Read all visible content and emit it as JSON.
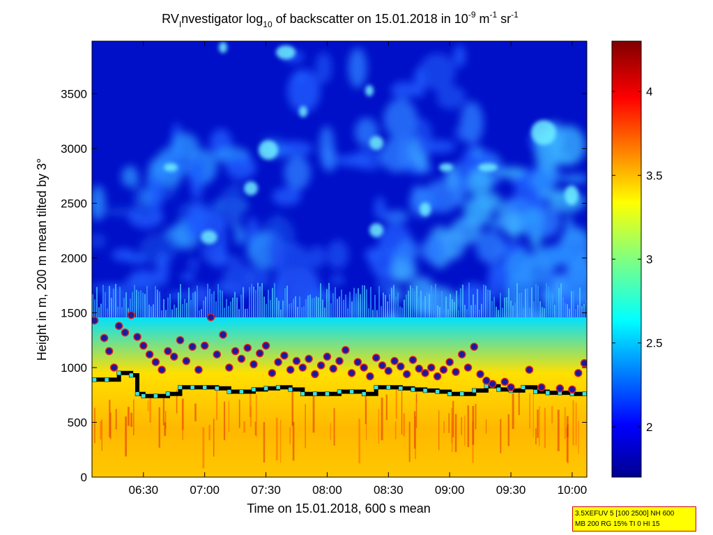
{
  "chart_data": {
    "type": "heatmap",
    "title": {
      "pre": "RV",
      "sub1": "I",
      "mid": "nvestigator log",
      "sub2": "10",
      "mid2": " of backscatter on 15.01.2018 in 10",
      "sup1": "-9",
      "mid3": " m",
      "sup2": "-1",
      "mid4": " sr",
      "sup3": "-1"
    },
    "xlabel": "Time on 15.01.2018, 600 s mean",
    "ylabel": "Height in m, 200 m mean tilted by 3°",
    "x_ticks": [
      "06:30",
      "07:00",
      "07:30",
      "08:00",
      "08:30",
      "09:00",
      "09:30",
      "10:00"
    ],
    "x_tick_hours": [
      6.5,
      7.0,
      7.5,
      8.0,
      8.5,
      9.0,
      9.5,
      10.0
    ],
    "xlim_hours": [
      6.08,
      10.12
    ],
    "y_ticks": [
      "0",
      "500",
      "1000",
      "1500",
      "2000",
      "2500",
      "3000",
      "3500"
    ],
    "y_tick_values": [
      0,
      500,
      1000,
      1500,
      2000,
      2500,
      3000,
      3500
    ],
    "ylim": [
      0,
      3980
    ],
    "colorbar": {
      "ticks": [
        "2",
        "2.5",
        "3",
        "3.5",
        "4"
      ],
      "tick_values": [
        2,
        2.5,
        3,
        3.5,
        4
      ],
      "range": [
        1.7,
        4.3
      ],
      "colormap": "jet"
    },
    "mixing_layer_height": [
      [
        6.1,
        890
      ],
      [
        6.2,
        890
      ],
      [
        6.3,
        950
      ],
      [
        6.4,
        930
      ],
      [
        6.45,
        760
      ],
      [
        6.5,
        740
      ],
      [
        6.6,
        740
      ],
      [
        6.7,
        760
      ],
      [
        6.8,
        820
      ],
      [
        6.9,
        820
      ],
      [
        7.0,
        820
      ],
      [
        7.1,
        810
      ],
      [
        7.2,
        780
      ],
      [
        7.3,
        780
      ],
      [
        7.4,
        800
      ],
      [
        7.5,
        810
      ],
      [
        7.6,
        820
      ],
      [
        7.7,
        800
      ],
      [
        7.8,
        760
      ],
      [
        7.9,
        760
      ],
      [
        8.0,
        760
      ],
      [
        8.1,
        780
      ],
      [
        8.2,
        780
      ],
      [
        8.3,
        760
      ],
      [
        8.4,
        820
      ],
      [
        8.5,
        820
      ],
      [
        8.6,
        810
      ],
      [
        8.7,
        800
      ],
      [
        8.8,
        790
      ],
      [
        8.9,
        780
      ],
      [
        9.0,
        760
      ],
      [
        9.1,
        760
      ],
      [
        9.2,
        790
      ],
      [
        9.3,
        830
      ],
      [
        9.4,
        800
      ],
      [
        9.5,
        790
      ],
      [
        9.6,
        820
      ],
      [
        9.7,
        780
      ],
      [
        9.8,
        770
      ],
      [
        9.9,
        770
      ],
      [
        10.0,
        760
      ],
      [
        10.1,
        760
      ]
    ],
    "cloud_layer_points": [
      [
        6.1,
        1430
      ],
      [
        6.18,
        1270
      ],
      [
        6.22,
        1150
      ],
      [
        6.26,
        1000
      ],
      [
        6.3,
        1380
      ],
      [
        6.35,
        1320
      ],
      [
        6.4,
        1480
      ],
      [
        6.45,
        1280
      ],
      [
        6.5,
        1200
      ],
      [
        6.55,
        1120
      ],
      [
        6.6,
        1050
      ],
      [
        6.65,
        980
      ],
      [
        6.7,
        1150
      ],
      [
        6.75,
        1100
      ],
      [
        6.8,
        1250
      ],
      [
        6.85,
        1060
      ],
      [
        6.9,
        1190
      ],
      [
        6.95,
        980
      ],
      [
        7.0,
        1200
      ],
      [
        7.05,
        1460
      ],
      [
        7.1,
        1120
      ],
      [
        7.15,
        1300
      ],
      [
        7.2,
        1000
      ],
      [
        7.25,
        1150
      ],
      [
        7.3,
        1080
      ],
      [
        7.35,
        1180
      ],
      [
        7.4,
        1030
      ],
      [
        7.45,
        1130
      ],
      [
        7.5,
        1200
      ],
      [
        7.55,
        950
      ],
      [
        7.6,
        1050
      ],
      [
        7.65,
        1110
      ],
      [
        7.7,
        980
      ],
      [
        7.75,
        1060
      ],
      [
        7.8,
        1000
      ],
      [
        7.85,
        1080
      ],
      [
        7.9,
        940
      ],
      [
        7.95,
        1020
      ],
      [
        8.0,
        1100
      ],
      [
        8.05,
        990
      ],
      [
        8.1,
        1060
      ],
      [
        8.15,
        1160
      ],
      [
        8.2,
        950
      ],
      [
        8.25,
        1050
      ],
      [
        8.3,
        1000
      ],
      [
        8.35,
        920
      ],
      [
        8.4,
        1090
      ],
      [
        8.45,
        1020
      ],
      [
        8.5,
        970
      ],
      [
        8.55,
        1060
      ],
      [
        8.6,
        1010
      ],
      [
        8.65,
        940
      ],
      [
        8.7,
        1070
      ],
      [
        8.75,
        990
      ],
      [
        8.8,
        950
      ],
      [
        8.85,
        1000
      ],
      [
        8.9,
        920
      ],
      [
        8.95,
        980
      ],
      [
        9.0,
        1050
      ],
      [
        9.05,
        960
      ],
      [
        9.1,
        1120
      ],
      [
        9.15,
        1000
      ],
      [
        9.2,
        1190
      ],
      [
        9.25,
        940
      ],
      [
        9.3,
        880
      ],
      [
        9.35,
        850
      ],
      [
        9.45,
        870
      ],
      [
        9.5,
        820
      ],
      [
        9.65,
        980
      ],
      [
        9.75,
        820
      ],
      [
        9.9,
        810
      ],
      [
        10.0,
        800
      ],
      [
        10.05,
        950
      ],
      [
        10.1,
        1040
      ]
    ],
    "info_box": [
      "3.5XEFUV 5 [100 2500] NH 600",
      "MB 200 RG 15% TI 0 HI 15"
    ]
  },
  "colors": {
    "cloud_marker_fill": "#1a1aa0",
    "cloud_marker_edge": "#e02020",
    "mlh_marker_fill": "#40e0e0",
    "mlh_line": "#000000",
    "info_box_bg": "#ffff00",
    "info_box_border": "#d00000"
  }
}
